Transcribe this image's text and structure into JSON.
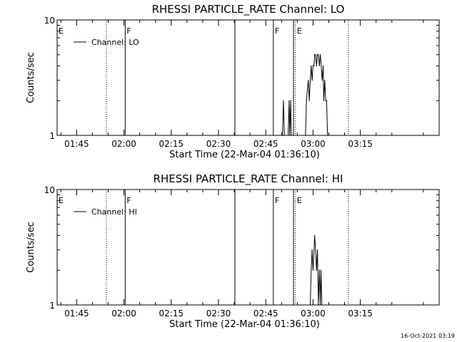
{
  "footer": {
    "timestamp": "16-Oct-2021 03:19"
  },
  "chart_data": [
    {
      "type": "line",
      "title": "RHESSI PARTICLE_RATE Channel: LO",
      "xlabel": "Start Time (22-Mar-04 01:36:10)",
      "ylabel": "Counts/sec",
      "yscale": "log",
      "ylim": [
        1,
        10
      ],
      "xlim_minutes": [
        -21.2,
        100.0
      ],
      "x_ticks": [
        "01:45",
        "02:00",
        "02:15",
        "02:30",
        "02:45",
        "03:00",
        "03:15"
      ],
      "x_tick_minutes": [
        -15,
        0,
        15,
        30,
        45,
        60,
        75
      ],
      "y_ticks": [
        "1",
        "10"
      ],
      "legend": {
        "label": "Channel: LO",
        "position": "top-left"
      },
      "markers": [
        {
          "label": "E",
          "minute": -21.2,
          "style": "dotted"
        },
        {
          "label": "",
          "minute": -5.6,
          "style": "dotted"
        },
        {
          "label": "F",
          "minute": 0.4,
          "style": "solid"
        },
        {
          "label": "",
          "minute": 35.2,
          "style": "solid"
        },
        {
          "label": "F",
          "minute": 47.4,
          "style": "solid"
        },
        {
          "label": "",
          "minute": 53.8,
          "style": "solid"
        },
        {
          "label": "E",
          "minute": 54.4,
          "style": "dotted"
        },
        {
          "label": "",
          "minute": 71.2,
          "style": "dotted"
        }
      ],
      "series": [
        {
          "name": "Channel: LO",
          "points": [
            [
              50.3,
              1.0
            ],
            [
              50.6,
              2.0
            ],
            [
              50.9,
              1.0
            ],
            [
              52.1,
              1.0
            ],
            [
              52.4,
              2.0
            ],
            [
              52.6,
              1.0
            ],
            [
              52.9,
              2.0
            ],
            [
              53.1,
              1.0
            ],
            [
              57.6,
              1.0
            ],
            [
              57.9,
              2.0
            ],
            [
              58.2,
              2.5
            ],
            [
              58.5,
              3.0
            ],
            [
              58.8,
              2.0
            ],
            [
              59.1,
              3.0
            ],
            [
              59.4,
              4.0
            ],
            [
              59.7,
              3.0
            ],
            [
              60.0,
              4.0
            ],
            [
              60.3,
              4.0
            ],
            [
              60.5,
              5.0
            ],
            [
              60.8,
              5.0
            ],
            [
              61.1,
              4.0
            ],
            [
              61.4,
              5.0
            ],
            [
              61.7,
              5.0
            ],
            [
              62.0,
              4.0
            ],
            [
              62.3,
              5.0
            ],
            [
              62.6,
              4.0
            ],
            [
              62.9,
              3.0
            ],
            [
              63.2,
              4.0
            ],
            [
              63.4,
              2.0
            ],
            [
              63.7,
              3.0
            ],
            [
              64.0,
              2.0
            ],
            [
              64.3,
              2.0
            ],
            [
              64.6,
              1.0
            ]
          ]
        }
      ]
    },
    {
      "type": "line",
      "title": "RHESSI PARTICLE_RATE Channel: HI",
      "xlabel": "Start Time (22-Mar-04 01:36:10)",
      "ylabel": "Counts/sec",
      "yscale": "log",
      "ylim": [
        1,
        10
      ],
      "xlim_minutes": [
        -21.2,
        100.0
      ],
      "x_ticks": [
        "01:45",
        "02:00",
        "02:15",
        "02:30",
        "02:45",
        "03:00",
        "03:15"
      ],
      "x_tick_minutes": [
        -15,
        0,
        15,
        30,
        45,
        60,
        75
      ],
      "y_ticks": [
        "1",
        "10"
      ],
      "legend": {
        "label": "Channel: HI",
        "position": "top-left"
      },
      "markers": [
        {
          "label": "E",
          "minute": -21.2,
          "style": "dotted"
        },
        {
          "label": "",
          "minute": -5.6,
          "style": "dotted"
        },
        {
          "label": "F",
          "minute": 0.4,
          "style": "solid"
        },
        {
          "label": "",
          "minute": 35.2,
          "style": "solid"
        },
        {
          "label": "F",
          "minute": 47.4,
          "style": "solid"
        },
        {
          "label": "",
          "minute": 53.8,
          "style": "solid"
        },
        {
          "label": "E",
          "minute": 54.4,
          "style": "dotted"
        },
        {
          "label": "",
          "minute": 71.2,
          "style": "dotted"
        }
      ],
      "series": [
        {
          "name": "Channel: HI",
          "points": [
            [
              59.1,
              1.0
            ],
            [
              59.4,
              2.0
            ],
            [
              59.7,
              3.0
            ],
            [
              60.0,
              2.0
            ],
            [
              60.3,
              3.0
            ],
            [
              60.5,
              4.0
            ],
            [
              60.8,
              3.0
            ],
            [
              61.1,
              2.0
            ],
            [
              61.4,
              3.0
            ],
            [
              61.7,
              1.0
            ],
            [
              62.0,
              2.0
            ],
            [
              62.3,
              1.0
            ],
            [
              62.5,
              2.0
            ],
            [
              62.8,
              1.0
            ]
          ]
        }
      ]
    }
  ]
}
